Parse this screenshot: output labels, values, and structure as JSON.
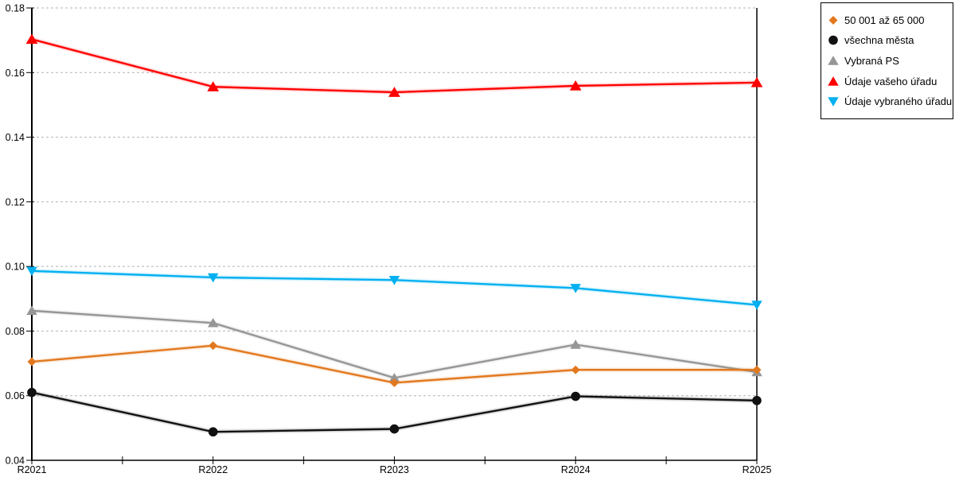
{
  "chart_data": {
    "type": "line",
    "title": "",
    "xlabel": "",
    "ylabel": "",
    "x_categories": [
      "R2021",
      "R2022",
      "R2023",
      "R2024",
      "R2025"
    ],
    "ylim": [
      0.04,
      0.18
    ],
    "ytick_labels": [
      "0.04",
      "0.06",
      "0.08",
      "0.10",
      "0.12",
      "0.14",
      "0.16",
      "0.18"
    ],
    "grid": "horizontal-dotted",
    "legend_position": "top-right",
    "series": [
      {
        "name": "50 001 až 65 000",
        "color": "#E2781E",
        "marker": "diamond",
        "values": [
          0.0705,
          0.0755,
          0.064,
          0.068,
          0.068
        ]
      },
      {
        "name": "všechna města",
        "color": "#111111",
        "marker": "circle",
        "values": [
          0.061,
          0.0488,
          0.0497,
          0.0598,
          0.0585
        ]
      },
      {
        "name": "Vybraná PS",
        "color": "#969696",
        "marker": "triangle-up",
        "values": [
          0.0863,
          0.0825,
          0.0655,
          0.0758,
          0.0673
        ]
      },
      {
        "name": "Údaje vašeho úřadu",
        "color": "#FF0000",
        "marker": "triangle-up",
        "values": [
          0.1703,
          0.1556,
          0.1539,
          0.1559,
          0.1569
        ]
      },
      {
        "name": "Údaje vybraného úřadu",
        "color": "#00B0F0",
        "marker": "triangle-down",
        "values": [
          0.0986,
          0.0966,
          0.0958,
          0.0933,
          0.0881
        ]
      }
    ]
  },
  "colors": {
    "background": "#FFFFFF",
    "gridline": "#B3B3B3",
    "axis": "#000000",
    "legend_border": "#000000",
    "text": "#000000"
  }
}
